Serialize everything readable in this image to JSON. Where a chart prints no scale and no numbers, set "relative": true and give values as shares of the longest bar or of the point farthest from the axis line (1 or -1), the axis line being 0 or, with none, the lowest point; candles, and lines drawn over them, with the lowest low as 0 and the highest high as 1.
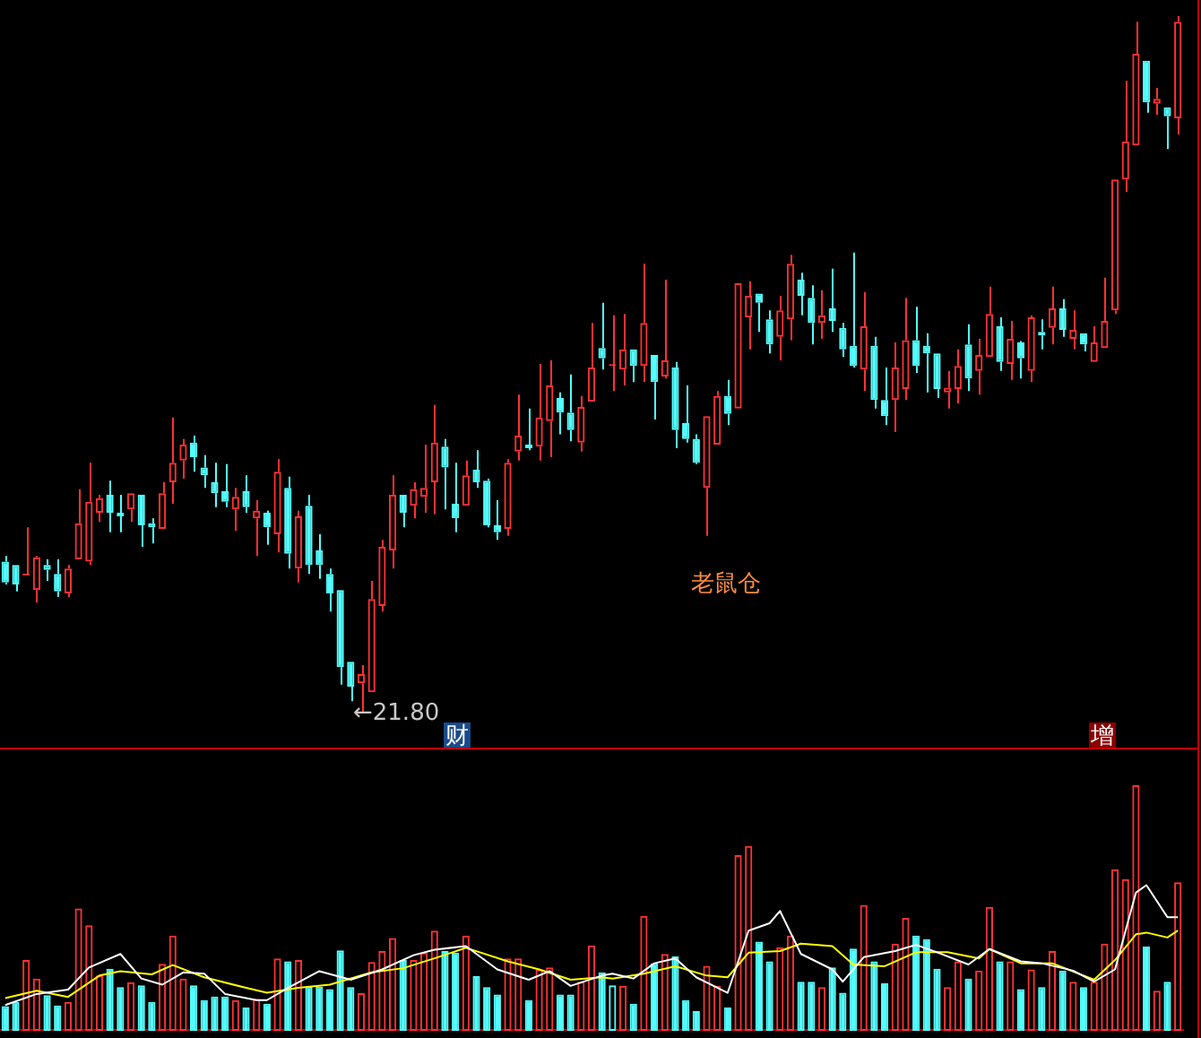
{
  "chart_data": [
    {
      "type": "candlestick",
      "relative": true,
      "categories": [
        null,
        null,
        null,
        null,
        null,
        null,
        null,
        null,
        null,
        null,
        null,
        null,
        null,
        null,
        null,
        null,
        null,
        null,
        null,
        null,
        null,
        null,
        null,
        null,
        null,
        null,
        null,
        null,
        null,
        null,
        null,
        null,
        null,
        null,
        null,
        null,
        null,
        null,
        null,
        null,
        null,
        null,
        null,
        null,
        null,
        null,
        null,
        null,
        null,
        null,
        null,
        null,
        null,
        null,
        null,
        null,
        null,
        null,
        null,
        null,
        null,
        null,
        null,
        null,
        null,
        null,
        null,
        null,
        null,
        null,
        null,
        null,
        null,
        null,
        null,
        null,
        null,
        null,
        null,
        null,
        null,
        null,
        null,
        null,
        null,
        null,
        null,
        null,
        null,
        null,
        null,
        null,
        null,
        null,
        null,
        null,
        null,
        null,
        null,
        null,
        null,
        null,
        null,
        null,
        null,
        null,
        null,
        null,
        null,
        null,
        null,
        null,
        null
      ],
      "ohlc": [
        [
          0.216,
          0.224,
          0.183,
          0.186
        ],
        [
          0.211,
          0.211,
          0.173,
          0.183
        ],
        [
          0.196,
          0.265,
          0.196,
          0.198
        ],
        [
          0.175,
          0.224,
          0.157,
          0.222
        ],
        [
          0.211,
          0.219,
          0.188,
          0.204
        ],
        [
          0.198,
          0.219,
          0.165,
          0.173
        ],
        [
          0.17,
          0.211,
          0.165,
          0.206
        ],
        [
          0.219,
          0.32,
          0.219,
          0.271
        ],
        [
          0.216,
          0.358,
          0.211,
          0.302
        ],
        [
          0.286,
          0.312,
          0.273,
          0.307
        ],
        [
          0.312,
          0.332,
          0.258,
          0.286
        ],
        [
          0.286,
          0.312,
          0.258,
          0.281
        ],
        [
          0.291,
          0.314,
          0.273,
          0.314
        ],
        [
          0.312,
          0.312,
          0.237,
          0.268
        ],
        [
          0.271,
          0.278,
          0.242,
          0.265
        ],
        [
          0.263,
          0.33,
          0.263,
          0.314
        ],
        [
          0.33,
          0.423,
          0.299,
          0.358
        ],
        [
          0.361,
          0.392,
          0.335,
          0.384
        ],
        [
          0.387,
          0.397,
          0.345,
          0.366
        ],
        [
          0.351,
          0.369,
          0.322,
          0.34
        ],
        [
          0.33,
          0.358,
          0.294,
          0.314
        ],
        [
          0.317,
          0.356,
          0.294,
          0.302
        ],
        [
          0.291,
          0.322,
          0.26,
          0.309
        ],
        [
          0.317,
          0.34,
          0.286,
          0.294
        ],
        [
          0.278,
          0.304,
          0.224,
          0.289
        ],
        [
          0.286,
          0.289,
          0.24,
          0.265
        ],
        [
          0.255,
          0.363,
          0.229,
          0.345
        ],
        [
          0.322,
          0.338,
          0.206,
          0.227
        ],
        [
          0.206,
          0.289,
          0.186,
          0.281
        ],
        [
          0.296,
          0.312,
          0.198,
          0.211
        ],
        [
          0.232,
          0.255,
          0.191,
          0.211
        ],
        [
          0.198,
          0.206,
          0.144,
          0.17
        ],
        [
          0.175,
          0.175,
          0.039,
          0.064
        ],
        [
          0.072,
          0.072,
          0.015,
          0.036
        ],
        [
          0.041,
          0.067,
          0,
          0.054
        ],
        [
          0.028,
          0.188,
          0.028,
          0.162
        ],
        [
          0.152,
          0.247,
          0.144,
          0.237
        ],
        [
          0.232,
          0.34,
          0.206,
          0.312
        ],
        [
          0.312,
          0.312,
          0.265,
          0.286
        ],
        [
          0.296,
          0.33,
          0.278,
          0.32
        ],
        [
          0.309,
          0.384,
          0.286,
          0.322
        ],
        [
          0.33,
          0.441,
          0.284,
          0.387
        ],
        [
          0.381,
          0.392,
          0.291,
          0.351
        ],
        [
          0.299,
          0.358,
          0.258,
          0.278
        ],
        [
          0.296,
          0.361,
          0.296,
          0.34
        ],
        [
          0.348,
          0.376,
          0.322,
          0.33
        ],
        [
          0.332,
          0.335,
          0.265,
          0.268
        ],
        [
          0.268,
          0.304,
          0.247,
          0.258
        ],
        [
          0.263,
          0.363,
          0.253,
          0.358
        ],
        [
          0.374,
          0.456,
          0.361,
          0.397
        ],
        [
          0.384,
          0.436,
          0.376,
          0.379
        ],
        [
          0.381,
          0.5,
          0.361,
          0.423
        ],
        [
          0.418,
          0.505,
          0.366,
          0.469
        ],
        [
          0.451,
          0.459,
          0.399,
          0.43
        ],
        [
          0.43,
          0.485,
          0.389,
          0.405
        ],
        [
          0.387,
          0.454,
          0.374,
          0.438
        ],
        [
          0.446,
          0.559,
          0.446,
          0.495
        ],
        [
          0.523,
          0.588,
          0.492,
          0.508
        ],
        [
          0.497,
          0.57,
          0.461,
          0.497
        ],
        [
          0.492,
          0.572,
          0.469,
          0.521
        ],
        [
          0.521,
          0.521,
          0.474,
          0.497
        ],
        [
          0.497,
          0.644,
          0.474,
          0.559
        ],
        [
          0.513,
          0.513,
          0.42,
          0.474
        ],
        [
          0.482,
          0.621,
          0.479,
          0.505
        ],
        [
          0.495,
          0.503,
          0.379,
          0.405
        ],
        [
          0.415,
          0.469,
          0.387,
          0.392
        ],
        [
          0.392,
          0.399,
          0.356,
          0.358
        ],
        [
          0.322,
          0.425,
          0.253,
          0.425
        ],
        [
          0.384,
          0.461,
          0.384,
          0.454
        ],
        [
          0.454,
          0.477,
          0.412,
          0.428
        ],
        [
          0.436,
          0.616,
          0.436,
          0.616
        ],
        [
          0.567,
          0.619,
          0.521,
          0.598
        ],
        [
          0.601,
          0.601,
          0.546,
          0.588
        ],
        [
          0.564,
          0.577,
          0.515,
          0.528
        ],
        [
          0.539,
          0.598,
          0.505,
          0.577
        ],
        [
          0.564,
          0.657,
          0.534,
          0.644
        ],
        [
          0.621,
          0.631,
          0.57,
          0.598
        ],
        [
          0.595,
          0.613,
          0.528,
          0.559
        ],
        [
          0.559,
          0.606,
          0.536,
          0.57
        ],
        [
          0.58,
          0.637,
          0.546,
          0.562
        ],
        [
          0.552,
          0.559,
          0.51,
          0.521
        ],
        [
          0.526,
          0.66,
          0.495,
          0.497
        ],
        [
          0.492,
          0.603,
          0.461,
          0.554
        ],
        [
          0.526,
          0.539,
          0.436,
          0.448
        ],
        [
          0.448,
          0.495,
          0.412,
          0.425
        ],
        [
          0.448,
          0.531,
          0.402,
          0.495
        ],
        [
          0.464,
          0.595,
          0.448,
          0.534
        ],
        [
          0.534,
          0.582,
          0.487,
          0.497
        ],
        [
          0.526,
          0.544,
          0.459,
          0.515
        ],
        [
          0.515,
          0.515,
          0.451,
          0.464
        ],
        [
          0.459,
          0.49,
          0.436,
          0.466
        ],
        [
          0.464,
          0.521,
          0.443,
          0.497
        ],
        [
          0.528,
          0.557,
          0.461,
          0.479
        ],
        [
          0.49,
          0.536,
          0.456,
          0.513
        ],
        [
          0.51,
          0.611,
          0.51,
          0.572
        ],
        [
          0.554,
          0.567,
          0.49,
          0.503
        ],
        [
          0.5,
          0.562,
          0.477,
          0.536
        ],
        [
          0.531,
          0.533,
          0.479,
          0.508
        ],
        [
          0.49,
          0.57,
          0.474,
          0.567
        ],
        [
          0.546,
          0.564,
          0.521,
          0.541
        ],
        [
          0.552,
          0.611,
          0.528,
          0.58
        ],
        [
          0.58,
          0.593,
          0.539,
          0.549
        ],
        [
          0.536,
          0.577,
          0.521,
          0.549
        ],
        [
          0.544,
          0.544,
          0.518,
          0.528
        ],
        [
          0.503,
          0.554,
          0.503,
          0.531
        ],
        [
          0.523,
          0.624,
          0.523,
          0.562
        ],
        [
          0.577,
          0.765,
          0.572,
          0.765
        ],
        [
          0.765,
          0.907,
          0.747,
          0.82
        ],
        [
          0.814,
          0.992,
          0.814,
          0.946
        ],
        [
          0.936,
          0.936,
          0.861,
          0.876
        ],
        [
          0.874,
          0.897,
          0.858,
          0.881
        ],
        [
          0.869,
          0.869,
          0.809,
          0.856
        ],
        [
          0.853,
          1,
          0.83,
          0.992
        ]
      ],
      "annotations": [
        "←21.80",
        "老鼠仓",
        "财",
        "增"
      ]
    },
    {
      "type": "bar",
      "relative": true,
      "categories": [
        null,
        null,
        null,
        null,
        null,
        null,
        null,
        null,
        null,
        null,
        null,
        null,
        null,
        null,
        null,
        null,
        null,
        null,
        null,
        null,
        null,
        null,
        null,
        null,
        null,
        null,
        null,
        null,
        null,
        null,
        null,
        null,
        null,
        null,
        null,
        null,
        null,
        null,
        null,
        null,
        null,
        null,
        null,
        null,
        null,
        null,
        null,
        null,
        null,
        null,
        null,
        null,
        null,
        null,
        null,
        null,
        null,
        null,
        null,
        null,
        null,
        null,
        null,
        null,
        null,
        null,
        null,
        null,
        null,
        null,
        null,
        null,
        null,
        null,
        null,
        null,
        null,
        null,
        null,
        null,
        null,
        null,
        null,
        null,
        null,
        null,
        null,
        null,
        null,
        null,
        null,
        null,
        null,
        null,
        null,
        null,
        null,
        null,
        null,
        null,
        null,
        null,
        null,
        null,
        null,
        null,
        null,
        null,
        null,
        null,
        null,
        null,
        null
      ],
      "series": [
        {
          "type": "bar",
          "colors": [
            "#54ffff",
            "#54ffff",
            "#ff3232",
            "#ff3232",
            "#54ffff",
            "#54ffff",
            "#ff3232",
            "#ff3232",
            "#ff3232",
            "#ff3232",
            "#54ffff",
            "#54ffff",
            "#ff3232",
            "#54ffff",
            "#54ffff",
            "#ff3232",
            "#ff3232",
            "#ff3232",
            "#54ffff",
            "#54ffff",
            "#54ffff",
            "#54ffff",
            "#ff3232",
            "#54ffff",
            "#ff3232",
            "#54ffff",
            "#ff3232",
            "#54ffff",
            "#ff3232",
            "#54ffff",
            "#54ffff",
            "#54ffff",
            "#54ffff",
            "#54ffff",
            "#ff3232",
            "#ff3232",
            "#ff3232",
            "#ff3232",
            "#54ffff",
            "#ff3232",
            "#ff3232",
            "#ff3232",
            "#54ffff",
            "#54ffff",
            "#ff3232",
            "#54ffff",
            "#54ffff",
            "#54ffff",
            "#ff3232",
            "#ff3232",
            "#54ffff",
            "#ff3232",
            "#ff3232",
            "#54ffff",
            "#54ffff",
            "#ff3232",
            "#ff3232",
            "#54ffff",
            "#54ffff",
            "#ff3232",
            "#54ffff",
            "#ff3232",
            "#54ffff",
            "#ff3232",
            "#54ffff",
            "#54ffff",
            "#54ffff",
            "#ff3232",
            "#ff3232",
            "#54ffff",
            "#ff3232",
            "#ff3232",
            "#54ffff",
            "#54ffff",
            "#ff3232",
            "#ff3232",
            "#54ffff",
            "#54ffff",
            "#ff3232",
            "#54ffff",
            "#54ffff",
            "#54ffff",
            "#ff3232",
            "#54ffff",
            "#54ffff",
            "#ff3232",
            "#ff3232",
            "#54ffff",
            "#54ffff",
            "#54ffff",
            "#ff3232",
            "#ff3232",
            "#54ffff",
            "#ff3232",
            "#ff3232",
            "#54ffff",
            "#ff3232",
            "#54ffff",
            "#ff3232",
            "#54ffff",
            "#ff3232",
            "#54ffff",
            "#ff3232",
            "#54ffff",
            "#ff3232",
            "#ff3232",
            "#ff3232",
            "#ff3232",
            "#ff3232",
            "#54ffff",
            "#ff3232",
            "#54ffff",
            "#ff3232"
          ],
          "values": [
            0.1,
            0.118,
            0.288,
            0.213,
            0.145,
            0.103,
            0.118,
            0.498,
            0.43,
            0.225,
            0.253,
            0.178,
            0.198,
            0.185,
            0.118,
            0.273,
            0.388,
            0.213,
            0.185,
            0.125,
            0.14,
            0.14,
            0.125,
            0.095,
            0.13,
            0.11,
            0.295,
            0.283,
            0.288,
            0.18,
            0.18,
            0.17,
            0.328,
            0.178,
            0.153,
            0.28,
            0.325,
            0.378,
            0.288,
            0.288,
            0.318,
            0.408,
            0.325,
            0.318,
            0.388,
            0.223,
            0.178,
            0.148,
            0.295,
            0.295,
            0.125,
            0.25,
            0.258,
            0.148,
            0.148,
            0.2,
            0.348,
            0.238,
            0.185,
            0.183,
            0.11,
            0.468,
            0.275,
            0.313,
            0.303,
            0.125,
            0.08,
            0.265,
            0.183,
            0.095,
            0.715,
            0.753,
            0.363,
            0.283,
            0.34,
            0.388,
            0.2,
            0.2,
            0.178,
            0.258,
            0.155,
            0.335,
            0.513,
            0.283,
            0.193,
            0.355,
            0.46,
            0.388,
            0.373,
            0.253,
            0.178,
            0.283,
            0.213,
            0.245,
            0.505,
            0.283,
            0.283,
            0.17,
            0.25,
            0.178,
            0.325,
            0.245,
            0.2,
            0.178,
            0.2,
            0.355,
            0.658,
            0.618,
            1,
            0.343,
            0.163,
            0.2,
            0.605
          ]
        },
        {
          "type": "line",
          "color": "#ffffff",
          "values": [
            0.105,
            null,
            null,
            0.15,
            null,
            null,
            0.168,
            null,
            0.258,
            null,
            null,
            0.313,
            null,
            0.213,
            null,
            0.188,
            null,
            0.238,
            null,
            0.233,
            null,
            0.15,
            null,
            null,
            0.125,
            0.125,
            null,
            0.175,
            null,
            null,
            0.243,
            null,
            null,
            0.208,
            null,
            null,
            0.25,
            null,
            null,
            0.308,
            null,
            0.33,
            null,
            null,
            0.345,
            null,
            null,
            0.25,
            null,
            null,
            0.208,
            null,
            0.243,
            null,
            0.183,
            null,
            null,
            0.225,
            0.233,
            null,
            0.213,
            null,
            0.275,
            null,
            0.295,
            null,
            0.218,
            null,
            null,
            0.155,
            null,
            0.408,
            null,
            0.438,
            0.488,
            null,
            0.313,
            null,
            null,
            0.25,
            0.2,
            null,
            0.3,
            null,
            null,
            0.325,
            null,
            0.35,
            null,
            0.32,
            null,
            null,
            0.27,
            null,
            0.333,
            null,
            null,
            0.283,
            null,
            0.275,
            null,
            null,
            0.245,
            null,
            0.2,
            null,
            0.25,
            null,
            0.563,
            0.593,
            null,
            0.463,
            0.463
          ]
        },
        {
          "type": "line",
          "color": "#ffff00",
          "values": [
            0.133,
            null,
            null,
            0.163,
            null,
            null,
            0.138,
            null,
            null,
            0.225,
            null,
            0.243,
            null,
            null,
            0.23,
            null,
            0.268,
            null,
            null,
            0.218,
            null,
            null,
            null,
            0.175,
            null,
            0.155,
            null,
            null,
            0.175,
            null,
            null,
            0.188,
            null,
            null,
            null,
            0.238,
            null,
            null,
            0.255,
            null,
            null,
            0.295,
            null,
            null,
            0.338,
            null,
            null,
            null,
            0.283,
            null,
            null,
            0.25,
            null,
            null,
            0.208,
            null,
            null,
            0.218,
            0.213,
            null,
            null,
            0.233,
            null,
            null,
            0.263,
            null,
            null,
            0.225,
            null,
            0.218,
            null,
            0.318,
            null,
            null,
            0.325,
            null,
            0.355,
            null,
            null,
            0.345,
            null,
            0.27,
            null,
            null,
            0.263,
            null,
            null,
            0.32,
            null,
            null,
            0.32,
            null,
            null,
            0.295,
            0.333,
            null,
            null,
            0.275,
            null,
            null,
            0.275,
            null,
            null,
            null,
            0.208,
            null,
            0.288,
            null,
            0.393,
            0.4,
            null,
            0.38,
            0.408
          ]
        }
      ]
    }
  ]
}
